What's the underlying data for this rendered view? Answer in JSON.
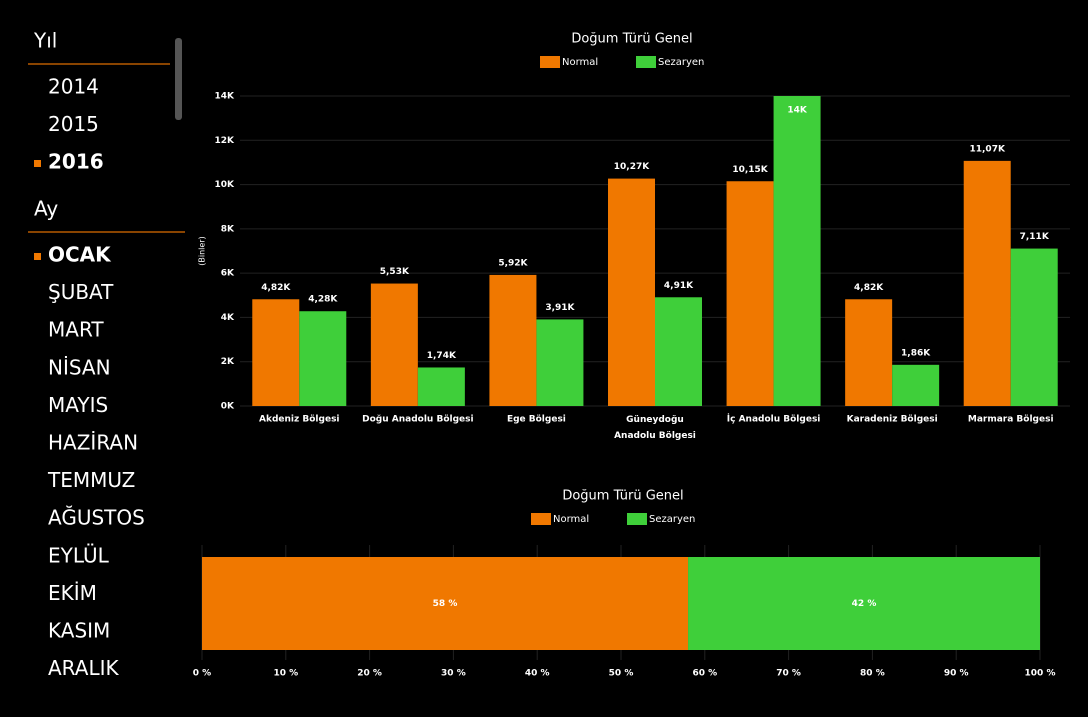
{
  "slicers": [
    {
      "title": "Yıl",
      "items": [
        "2014",
        "2015",
        "2016"
      ],
      "selected": 2
    },
    {
      "title": "Ay",
      "items": [
        "OCAK",
        "ŞUBAT",
        "MART",
        "NİSAN",
        "MAYIS",
        "HAZİRAN",
        "TEMMUZ",
        "AĞUSTOS",
        "EYLÜL",
        "EKİM",
        "KASIM",
        "ARALIK"
      ],
      "selected": 0
    }
  ],
  "chart_data": [
    {
      "type": "bar",
      "orientation": "vertical",
      "title": "Doğum Türü Genel",
      "y_label": "(Binler)",
      "categories": [
        "Akdeniz Bölgesi",
        "Doğu Anadolu Bölgesi",
        "Ege Bölgesi",
        "Güneydoğu Anadolu Bölgesi",
        "İç Anadolu Bölgesi",
        "Karadeniz Bölgesi",
        "Marmara Bölgesi"
      ],
      "series": [
        {
          "name": "Normal",
          "color": "#f07800",
          "values": [
            4820,
            5530,
            5920,
            10270,
            10150,
            4820,
            11070
          ],
          "value_labels": [
            "4,82K",
            "5,53K",
            "5,92K",
            "10,27K",
            "10,15K",
            "4,82K",
            "11,07K"
          ]
        },
        {
          "name": "Sezaryen",
          "color": "#3fcf3a",
          "values": [
            4280,
            1740,
            3910,
            4910,
            14000,
            1860,
            7110
          ],
          "value_labels": [
            "4,28K",
            "1,74K",
            "3,91K",
            "4,91K",
            "14K",
            "1,86K",
            "7,11K"
          ]
        }
      ],
      "ylim": [
        0,
        14000
      ],
      "yticks": [
        {
          "value": 0,
          "label": "0K"
        },
        {
          "value": 2000,
          "label": "2K"
        },
        {
          "value": 4000,
          "label": "4K"
        },
        {
          "value": 6000,
          "label": "6K"
        },
        {
          "value": 8000,
          "label": "8K"
        },
        {
          "value": 10000,
          "label": "10K"
        },
        {
          "value": 12000,
          "label": "12K"
        },
        {
          "value": 14000,
          "label": "14K"
        }
      ],
      "grid": true
    },
    {
      "type": "stacked-bar",
      "orientation": "horizontal",
      "title": "Doğum Türü Genel",
      "series": [
        {
          "name": "Normal",
          "color": "#f07800",
          "values": [
            58
          ],
          "value_labels": [
            "58 %"
          ]
        },
        {
          "name": "Sezaryen",
          "color": "#3fcf3a",
          "values": [
            42
          ],
          "value_labels": [
            "42 %"
          ]
        }
      ],
      "xlim": [
        0,
        100
      ],
      "xticks": [
        {
          "value": 0,
          "label": "0 %"
        },
        {
          "value": 10,
          "label": "10 %"
        },
        {
          "value": 20,
          "label": "20 %"
        },
        {
          "value": 30,
          "label": "30 %"
        },
        {
          "value": 40,
          "label": "40 %"
        },
        {
          "value": 50,
          "label": "50 %"
        },
        {
          "value": 60,
          "label": "60 %"
        },
        {
          "value": 70,
          "label": "70 %"
        },
        {
          "value": 80,
          "label": "80 %"
        },
        {
          "value": 90,
          "label": "90 %"
        },
        {
          "value": 100,
          "label": "100 %"
        }
      ],
      "grid": true
    }
  ]
}
